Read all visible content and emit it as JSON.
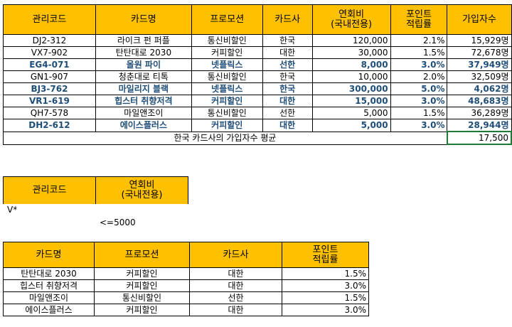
{
  "main_table": {
    "headers": [
      "관리코드",
      "카드명",
      "프로모션",
      "카드사",
      "연회비\n(국내전용)",
      "포인트\n적립률",
      "가입자수"
    ],
    "rows": [
      {
        "code": "DJ2-312",
        "card": "라이크 펀 퍼플",
        "promo": "통신비할인",
        "issuer": "한국",
        "fee": "120,000",
        "rate": "2.1%",
        "members": "15,929명",
        "hl": false
      },
      {
        "code": "VX7-902",
        "card": "탄탄대로 2030",
        "promo": "커피할인",
        "issuer": "대한",
        "fee": "30,000",
        "rate": "1.5%",
        "members": "72,678명",
        "hl": false
      },
      {
        "code": "EG4-071",
        "card": "올원 파이",
        "promo": "넷플릭스",
        "issuer": "선한",
        "fee": "8,000",
        "rate": "3.0%",
        "members": "37,949명",
        "hl": true
      },
      {
        "code": "GN1-907",
        "card": "청춘대로 티톡",
        "promo": "통신비할인",
        "issuer": "한국",
        "fee": "10,000",
        "rate": "2.0%",
        "members": "32,509명",
        "hl": false
      },
      {
        "code": "BJ3-762",
        "card": "마일리지 블랙",
        "promo": "넷플릭스",
        "issuer": "한국",
        "fee": "300,000",
        "rate": "5.0%",
        "members": "4,062명",
        "hl": true
      },
      {
        "code": "VR1-619",
        "card": "힙스터 취향저격",
        "promo": "커피할인",
        "issuer": "대한",
        "fee": "15,000",
        "rate": "3.0%",
        "members": "48,683명",
        "hl": true
      },
      {
        "code": "QH7-578",
        "card": "마일앤조이",
        "promo": "통신비할인",
        "issuer": "선한",
        "fee": "5,000",
        "rate": "1.5%",
        "members": "36,289명",
        "hl": false
      },
      {
        "code": "DH2-612",
        "card": "에이스플러스",
        "promo": "커피할인",
        "issuer": "대한",
        "fee": "5,000",
        "rate": "3.0%",
        "members": "28,944명",
        "hl": true
      }
    ],
    "summary_label": "한국 카드사의 가입자수 평균",
    "summary_value": "17,500"
  },
  "criteria": {
    "headers": [
      "관리코드",
      "연회비\n(국내전용)"
    ],
    "value1": "V*",
    "value2": "<=5000"
  },
  "output_table": {
    "headers": [
      "카드명",
      "프로모션",
      "카드사",
      "포인트\n적립률"
    ],
    "rows": [
      {
        "card": "탄탄대로 2030",
        "promo": "커피할인",
        "issuer": "대한",
        "rate": "1.5%"
      },
      {
        "card": "힙스터 취향저격",
        "promo": "커피할인",
        "issuer": "대한",
        "rate": "3.0%"
      },
      {
        "card": "마일앤조이",
        "promo": "통신비할인",
        "issuer": "선한",
        "rate": "1.5%"
      },
      {
        "card": "에이스플러스",
        "promo": "커피할인",
        "issuer": "대한",
        "rate": "3.0%"
      }
    ]
  }
}
